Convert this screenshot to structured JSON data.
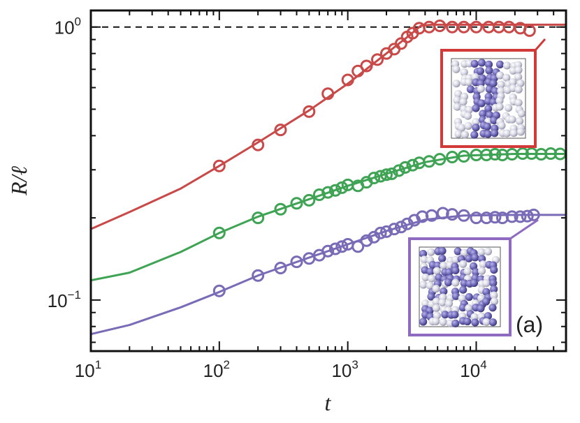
{
  "chart_data": {
    "type": "scatter",
    "title": "",
    "xlabel": "t",
    "ylabel": "R/ℓ",
    "xscale": "log",
    "yscale": "log",
    "xlim": [
      10,
      50000
    ],
    "ylim": [
      0.065,
      1.15
    ],
    "grid": false,
    "x_tick_labels": [
      {
        "base": "10",
        "exp": "1"
      },
      {
        "base": "10",
        "exp": "2"
      },
      {
        "base": "10",
        "exp": "3"
      },
      {
        "base": "10",
        "exp": "4"
      }
    ],
    "y_tick_labels": [
      {
        "base": "10",
        "exp": "0"
      },
      {
        "base": "10",
        "exp": "−1"
      }
    ],
    "reference_line": {
      "y": 1.0,
      "style": "dashed",
      "color": "#111111"
    },
    "panel_label": "(a)",
    "series": [
      {
        "color": "#c94848",
        "points": [
          [
            100,
            0.31
          ],
          [
            200,
            0.37
          ],
          [
            300,
            0.42
          ],
          [
            500,
            0.49
          ],
          [
            700,
            0.57
          ],
          [
            1000,
            0.64
          ],
          [
            1200,
            0.69
          ],
          [
            1400,
            0.72
          ],
          [
            1700,
            0.76
          ],
          [
            2000,
            0.8
          ],
          [
            2300,
            0.83
          ],
          [
            2600,
            0.87
          ],
          [
            2900,
            0.92
          ],
          [
            3200,
            0.95
          ],
          [
            3600,
            0.99
          ],
          [
            4300,
            1.0
          ],
          [
            5200,
            1.01
          ],
          [
            6500,
            1.0
          ],
          [
            8000,
            1.0
          ],
          [
            10000,
            1.0
          ],
          [
            12500,
            1.0
          ],
          [
            15000,
            1.0
          ],
          [
            18000,
            1.0
          ],
          [
            22000,
            0.99
          ],
          [
            26000,
            0.97
          ]
        ],
        "fit": [
          [
            10,
            0.182
          ],
          [
            20,
            0.21
          ],
          [
            50,
            0.256
          ],
          [
            100,
            0.31
          ],
          [
            200,
            0.378
          ],
          [
            500,
            0.495
          ],
          [
            1000,
            0.62
          ],
          [
            2000,
            0.8
          ],
          [
            3000,
            0.93
          ],
          [
            3700,
            1.01
          ],
          [
            4500,
            1.02
          ],
          [
            10000,
            1.02
          ],
          [
            50000,
            1.02
          ]
        ]
      },
      {
        "color": "#3fa354",
        "points": [
          [
            100,
            0.176
          ],
          [
            200,
            0.2
          ],
          [
            300,
            0.215
          ],
          [
            400,
            0.226
          ],
          [
            500,
            0.232
          ],
          [
            600,
            0.243
          ],
          [
            700,
            0.248
          ],
          [
            800,
            0.252
          ],
          [
            900,
            0.258
          ],
          [
            1000,
            0.264
          ],
          [
            1200,
            0.262
          ],
          [
            1400,
            0.27
          ],
          [
            1600,
            0.28
          ],
          [
            1800,
            0.284
          ],
          [
            2000,
            0.288
          ],
          [
            2200,
            0.29
          ],
          [
            2500,
            0.298
          ],
          [
            2800,
            0.306
          ],
          [
            3200,
            0.312
          ],
          [
            3600,
            0.318
          ],
          [
            4300,
            0.322
          ],
          [
            5200,
            0.328
          ],
          [
            6500,
            0.334
          ],
          [
            8000,
            0.336
          ],
          [
            10000,
            0.34
          ],
          [
            12000,
            0.34
          ],
          [
            14000,
            0.342
          ],
          [
            16000,
            0.34
          ],
          [
            19000,
            0.342
          ],
          [
            23000,
            0.344
          ],
          [
            27000,
            0.344
          ],
          [
            32000,
            0.342
          ],
          [
            38000,
            0.344
          ],
          [
            45000,
            0.343
          ]
        ],
        "fit": [
          [
            10,
            0.118
          ],
          [
            20,
            0.126
          ],
          [
            50,
            0.15
          ],
          [
            100,
            0.176
          ],
          [
            200,
            0.202
          ],
          [
            500,
            0.234
          ],
          [
            1000,
            0.262
          ],
          [
            2000,
            0.29
          ],
          [
            4000,
            0.32
          ],
          [
            8000,
            0.338
          ],
          [
            20000,
            0.343
          ],
          [
            50000,
            0.343
          ]
        ]
      },
      {
        "color": "#7a6bb7",
        "points": [
          [
            100,
            0.108
          ],
          [
            200,
            0.123
          ],
          [
            300,
            0.131
          ],
          [
            400,
            0.138
          ],
          [
            500,
            0.142
          ],
          [
            600,
            0.146
          ],
          [
            700,
            0.151
          ],
          [
            800,
            0.154
          ],
          [
            900,
            0.157
          ],
          [
            1000,
            0.16
          ],
          [
            1200,
            0.157
          ],
          [
            1400,
            0.165
          ],
          [
            1600,
            0.17
          ],
          [
            1800,
            0.176
          ],
          [
            2000,
            0.178
          ],
          [
            2300,
            0.182
          ],
          [
            2600,
            0.185
          ],
          [
            2900,
            0.19
          ],
          [
            3300,
            0.196
          ],
          [
            3800,
            0.202
          ],
          [
            4500,
            0.204
          ],
          [
            5500,
            0.208
          ],
          [
            6500,
            0.206
          ],
          [
            8000,
            0.204
          ],
          [
            10000,
            0.2
          ],
          [
            12000,
            0.2
          ],
          [
            14000,
            0.201
          ],
          [
            16000,
            0.2
          ],
          [
            19000,
            0.202
          ],
          [
            22000,
            0.202
          ],
          [
            25000,
            0.203
          ],
          [
            28000,
            0.205
          ]
        ],
        "fit": [
          [
            10,
            0.075
          ],
          [
            20,
            0.081
          ],
          [
            50,
            0.094
          ],
          [
            100,
            0.107
          ],
          [
            200,
            0.123
          ],
          [
            500,
            0.143
          ],
          [
            1000,
            0.16
          ],
          [
            2000,
            0.179
          ],
          [
            4000,
            0.197
          ],
          [
            8000,
            0.204
          ],
          [
            20000,
            0.205
          ],
          [
            50000,
            0.205
          ]
        ]
      }
    ],
    "insets": [
      {
        "name": "inset-slab",
        "frame_color": "#d23a3a",
        "anchored_series": 0
      },
      {
        "name": "inset-mixed",
        "frame_color": "#8e6bc0",
        "anchored_series": 2
      }
    ]
  }
}
